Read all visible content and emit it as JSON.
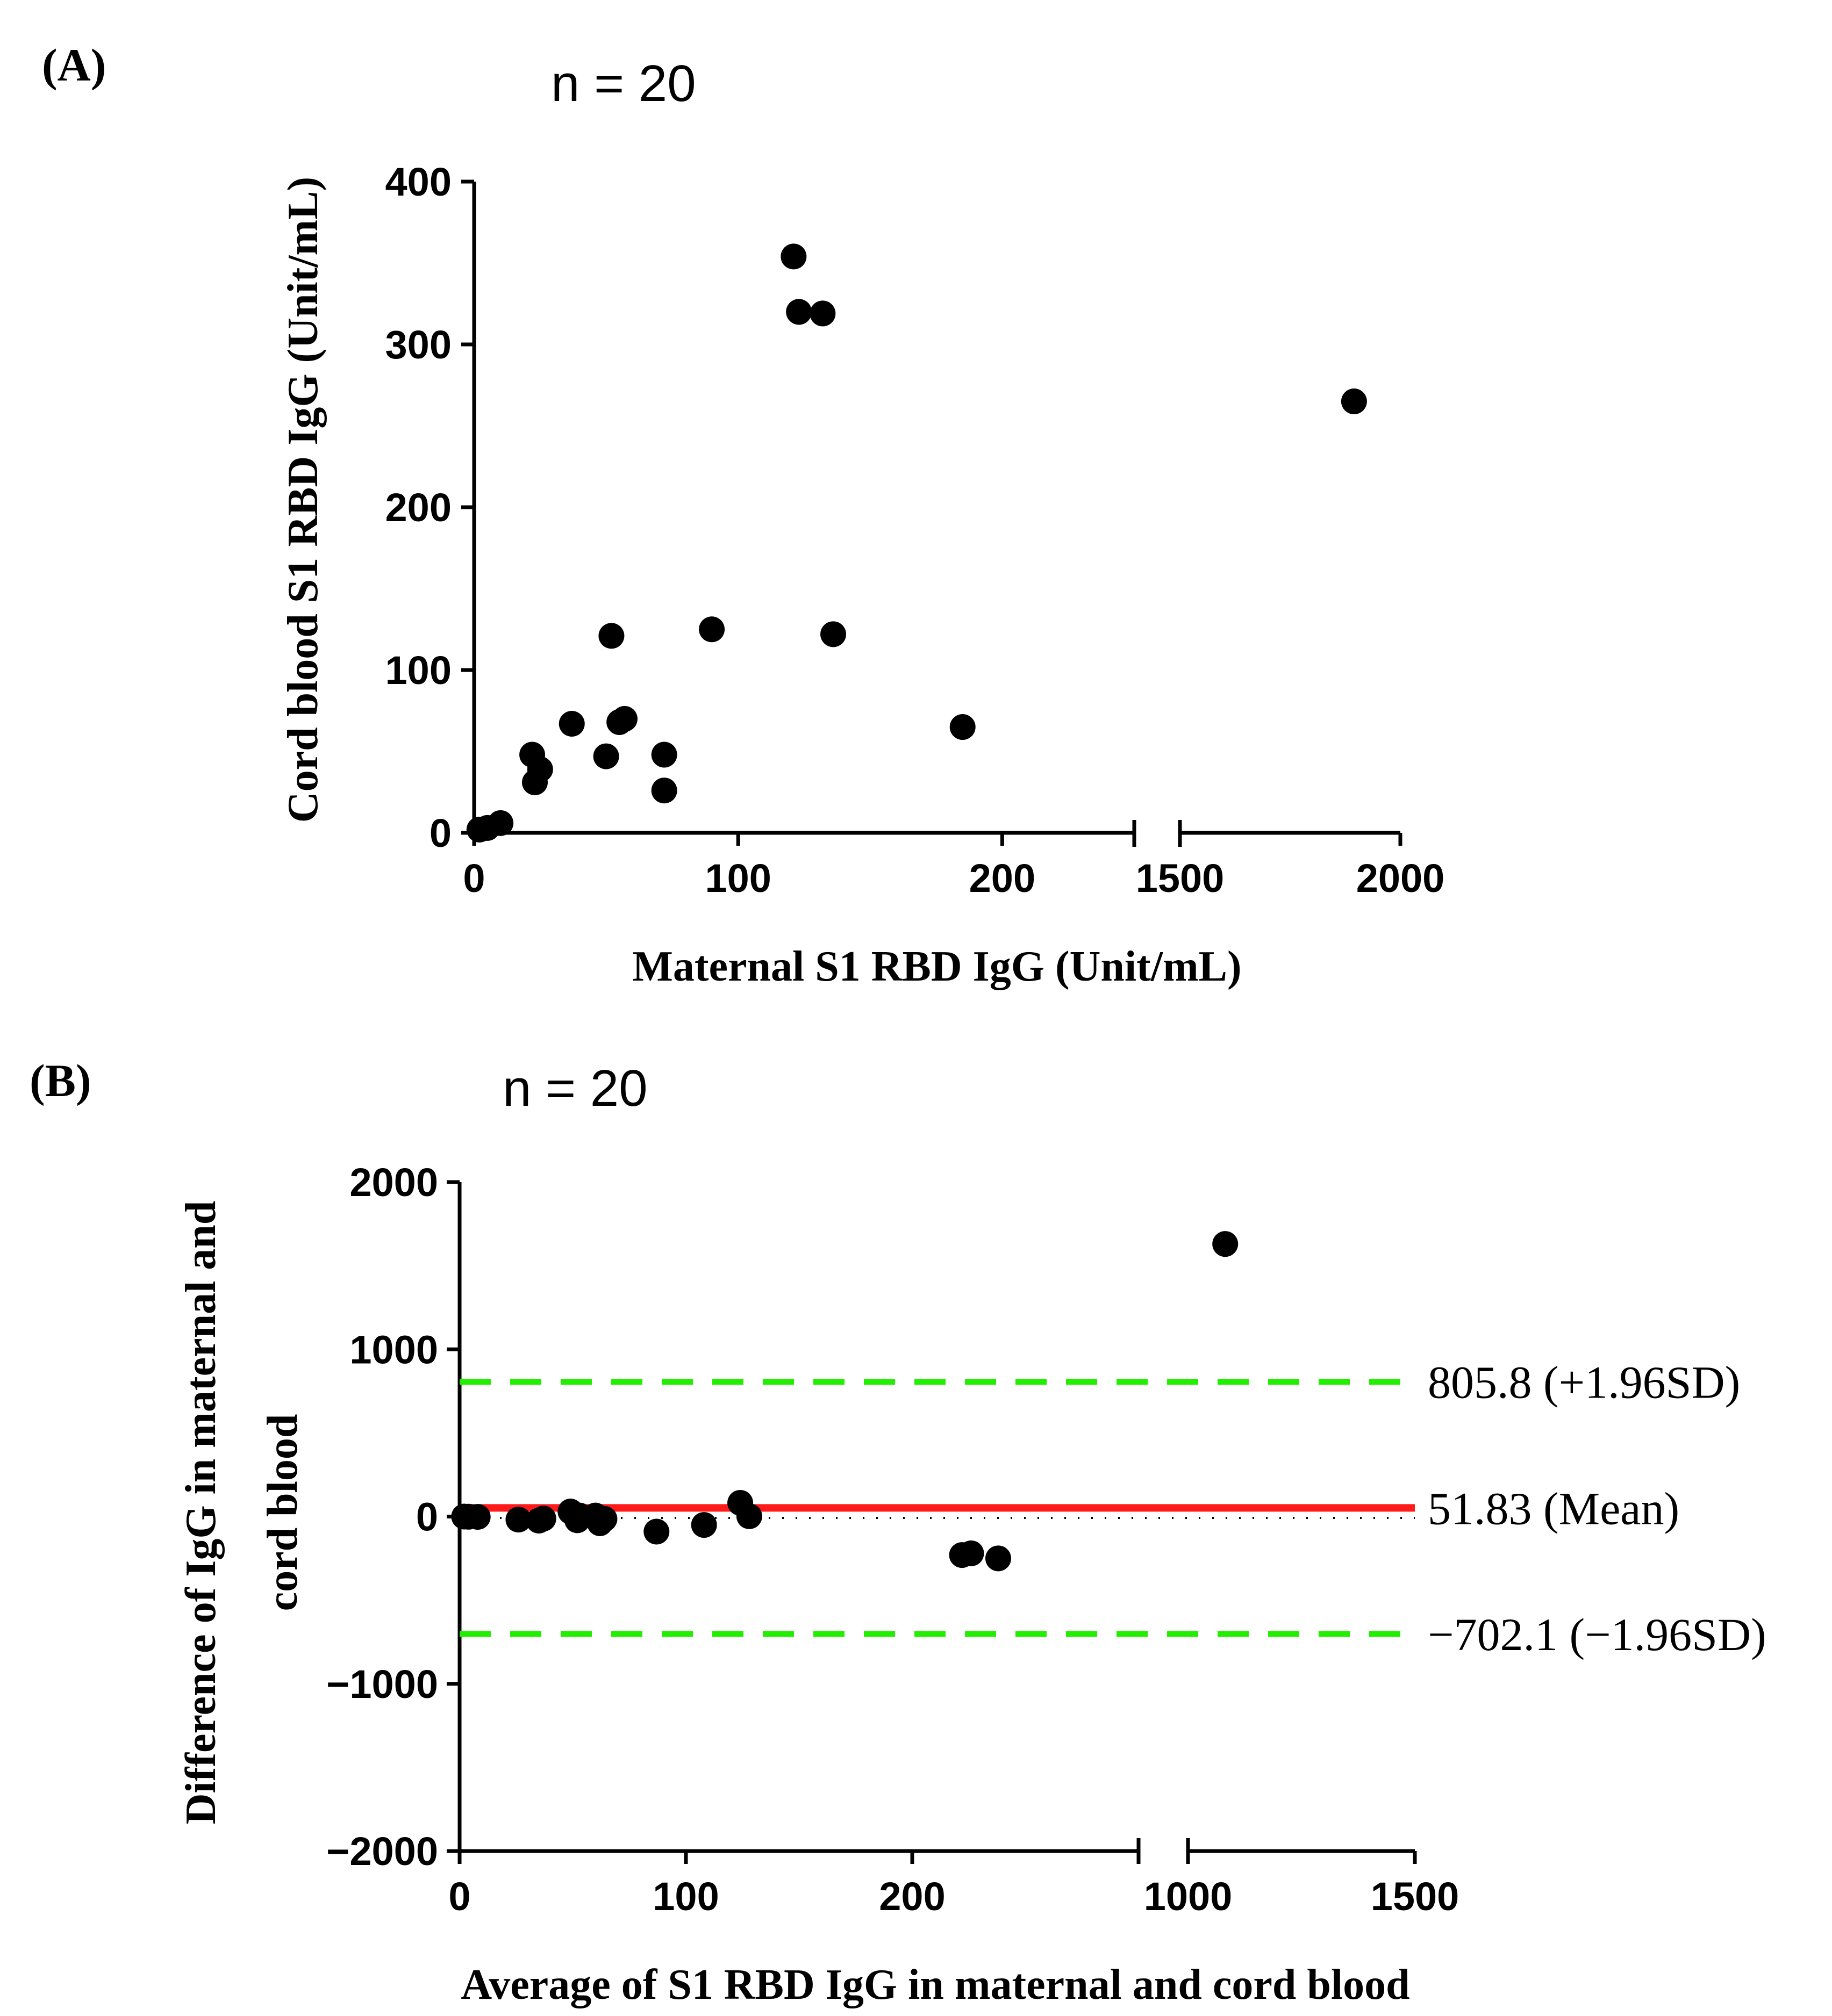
{
  "chart_data": [
    {
      "type": "scatter",
      "panel_label": "(A)",
      "n_label": "n = 20",
      "xlabel": "Maternal S1 RBD IgG (Unit/mL)",
      "ylabel": "Cord blood S1 RBD IgG (Unit/mL)",
      "x_axis_break": {
        "segments": [
          [
            0,
            250
          ],
          [
            1500,
            2000
          ]
        ]
      },
      "xticks": [
        {
          "value": 0,
          "label": "0"
        },
        {
          "value": 100,
          "label": "100"
        },
        {
          "value": 200,
          "label": "200"
        },
        {
          "value": 1500,
          "label": "1500"
        },
        {
          "value": 2000,
          "label": "2000"
        }
      ],
      "ylim": [
        0,
        400
      ],
      "yticks": [
        {
          "value": 0,
          "label": "0"
        },
        {
          "value": 100,
          "label": "100"
        },
        {
          "value": 200,
          "label": "200"
        },
        {
          "value": 300,
          "label": "300"
        },
        {
          "value": 400,
          "label": "400"
        }
      ],
      "points": [
        {
          "x": 2,
          "y": 2
        },
        {
          "x": 5,
          "y": 3
        },
        {
          "x": 10,
          "y": 6
        },
        {
          "x": 22,
          "y": 48
        },
        {
          "x": 23,
          "y": 31
        },
        {
          "x": 25,
          "y": 39
        },
        {
          "x": 37,
          "y": 67
        },
        {
          "x": 50,
          "y": 47
        },
        {
          "x": 52,
          "y": 121
        },
        {
          "x": 55,
          "y": 68
        },
        {
          "x": 57,
          "y": 70
        },
        {
          "x": 72,
          "y": 48
        },
        {
          "x": 72,
          "y": 26
        },
        {
          "x": 90,
          "y": 125
        },
        {
          "x": 121,
          "y": 354
        },
        {
          "x": 123,
          "y": 320
        },
        {
          "x": 132,
          "y": 319
        },
        {
          "x": 136,
          "y": 122
        },
        {
          "x": 185,
          "y": 65
        },
        {
          "x": 1895,
          "y": 265
        }
      ]
    },
    {
      "type": "scatter",
      "subtype": "bland-altman",
      "panel_label": "(B)",
      "n_label": "n = 20",
      "xlabel": "Average of S1 RBD IgG in maternal and cord blood",
      "ylabel_lines": [
        "Difference of IgG in maternal and",
        "cord blood"
      ],
      "x_axis_break": {
        "segments": [
          [
            0,
            300
          ],
          [
            1000,
            1500
          ]
        ]
      },
      "xticks": [
        {
          "value": 0,
          "label": "0"
        },
        {
          "value": 100,
          "label": "100"
        },
        {
          "value": 200,
          "label": "200"
        },
        {
          "value": 1000,
          "label": "1000"
        },
        {
          "value": 1500,
          "label": "1500"
        }
      ],
      "ylim": [
        -2000,
        2000
      ],
      "yticks": [
        {
          "value": -2000,
          "label": "−2000"
        },
        {
          "value": -1000,
          "label": "−1000"
        },
        {
          "value": 0,
          "label": "0"
        },
        {
          "value": 1000,
          "label": "1000"
        },
        {
          "value": 2000,
          "label": "2000"
        }
      ],
      "reference_lines": [
        {
          "value": 805.8,
          "label": "805.8 (+1.96SD)",
          "color": "#22ee00",
          "style": "dashed"
        },
        {
          "value": 51.83,
          "label": "51.83 (Mean)",
          "color": "#ff1a1a",
          "style": "solid"
        },
        {
          "value": -702.1,
          "label": "−702.1 (−1.96SD)",
          "color": "#22ee00",
          "style": "dashed"
        }
      ],
      "points": [
        {
          "x": 2,
          "y": 0
        },
        {
          "x": 4,
          "y": -1
        },
        {
          "x": 8,
          "y": -2
        },
        {
          "x": 26,
          "y": -18
        },
        {
          "x": 35,
          "y": -24
        },
        {
          "x": 37,
          "y": -12
        },
        {
          "x": 49,
          "y": 30
        },
        {
          "x": 52,
          "y": -22
        },
        {
          "x": 53,
          "y": 6
        },
        {
          "x": 60,
          "y": 6
        },
        {
          "x": 62,
          "y": -40
        },
        {
          "x": 64,
          "y": -14
        },
        {
          "x": 87,
          "y": -90
        },
        {
          "x": 108,
          "y": -50
        },
        {
          "x": 124,
          "y": 82
        },
        {
          "x": 128,
          "y": 2
        },
        {
          "x": 222,
          "y": -230
        },
        {
          "x": 226,
          "y": -220
        },
        {
          "x": 238,
          "y": -250
        },
        {
          "x": 1082,
          "y": 1630
        }
      ]
    }
  ]
}
